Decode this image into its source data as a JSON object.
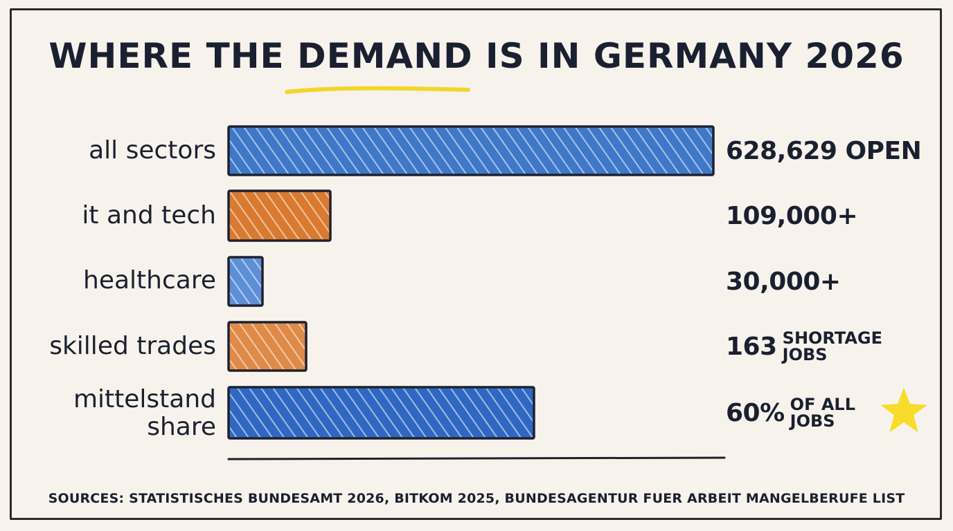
{
  "chart_data": {
    "type": "bar",
    "orientation": "horizontal",
    "title": "WHERE THE DEMAND IS IN GERMANY 2026",
    "categories": [
      "all sectors",
      "it and tech",
      "healthcare",
      "skilled trades",
      "mittelstand\nshare"
    ],
    "value_labels": [
      {
        "main": "628,629 OPEN",
        "note": ""
      },
      {
        "main": "109,000+",
        "note": ""
      },
      {
        "main": "30,000+",
        "note": ""
      },
      {
        "main": "163",
        "note": "SHORTAGE\nJOBS"
      },
      {
        "main": "60%",
        "note": "OF ALL\nJOBS"
      }
    ],
    "relative_lengths": [
      1.0,
      0.21,
      0.07,
      0.16,
      0.63
    ],
    "colors": [
      "#3f78c9",
      "#d97a30",
      "#5d8fd6",
      "#e08a47",
      "#2f68c2"
    ],
    "highlight_word": "DEMAND",
    "highlight_color": "#f2d52a",
    "star_color": "#f7dc2a",
    "grid": false
  },
  "sources": "SOURCES: STATISTISCHES BUNDESAMT 2026, BITKOM 2025, BUNDESAGENTUR FUER ARBEIT MANGELBERUFE LIST"
}
